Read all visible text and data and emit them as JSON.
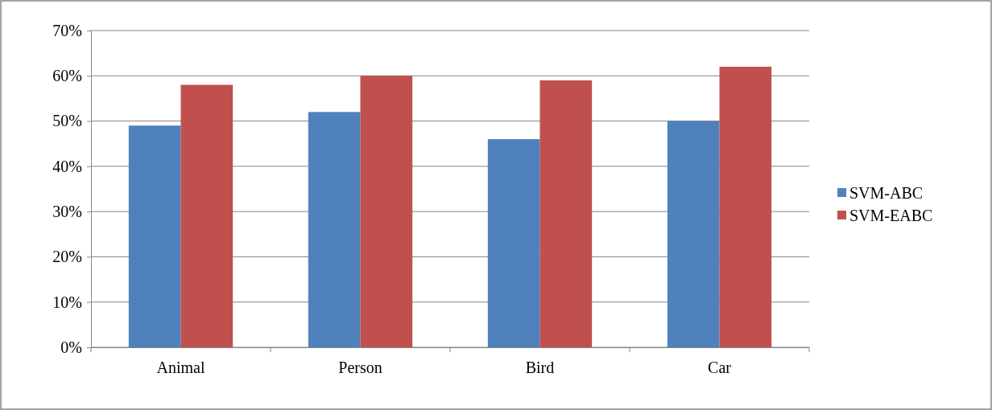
{
  "chart_data": {
    "type": "bar",
    "categories": [
      "Animal",
      "Person",
      "Bird",
      "Car"
    ],
    "series": [
      {
        "name": "SVM-ABC",
        "color": "#4f81bd",
        "values": [
          49,
          52,
          46,
          50
        ]
      },
      {
        "name": "SVM-EABC",
        "color": "#c0504d",
        "values": [
          58,
          60,
          59,
          62
        ]
      }
    ],
    "ylim": [
      0,
      70
    ],
    "yticks": [
      {
        "value": 0,
        "label": "0%"
      },
      {
        "value": 10,
        "label": "10%"
      },
      {
        "value": 20,
        "label": "20%"
      },
      {
        "value": 30,
        "label": "30%"
      },
      {
        "value": 40,
        "label": "40%"
      },
      {
        "value": 50,
        "label": "50%"
      },
      {
        "value": 60,
        "label": "60%"
      },
      {
        "value": 70,
        "label": "70%"
      }
    ],
    "grid": "y",
    "legend": "right"
  }
}
